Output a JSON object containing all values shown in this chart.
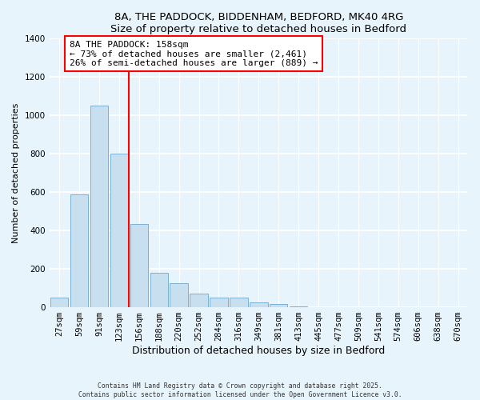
{
  "title_line1": "8A, THE PADDOCK, BIDDENHAM, BEDFORD, MK40 4RG",
  "title_line2": "Size of property relative to detached houses in Bedford",
  "xlabel": "Distribution of detached houses by size in Bedford",
  "ylabel": "Number of detached properties",
  "bar_labels": [
    "27sqm",
    "59sqm",
    "91sqm",
    "123sqm",
    "156sqm",
    "188sqm",
    "220sqm",
    "252sqm",
    "284sqm",
    "316sqm",
    "349sqm",
    "381sqm",
    "413sqm",
    "445sqm",
    "477sqm",
    "509sqm",
    "541sqm",
    "574sqm",
    "606sqm",
    "638sqm",
    "670sqm"
  ],
  "bar_values": [
    50,
    590,
    1050,
    800,
    435,
    180,
    125,
    70,
    50,
    50,
    25,
    15,
    5,
    2,
    1,
    0,
    0,
    0,
    0,
    0,
    2
  ],
  "bar_color": "#c8dff0",
  "bar_edge_color": "#7ab0d8",
  "vline_x_index": 4,
  "vline_color": "red",
  "annotation_title": "8A THE PADDOCK: 158sqm",
  "annotation_line2": "← 73% of detached houses are smaller (2,461)",
  "annotation_line3": "26% of semi-detached houses are larger (889) →",
  "annotation_box_color": "white",
  "annotation_box_edge": "red",
  "ylim": [
    0,
    1400
  ],
  "yticks": [
    0,
    200,
    400,
    600,
    800,
    1000,
    1200,
    1400
  ],
  "footer_line1": "Contains HM Land Registry data © Crown copyright and database right 2025.",
  "footer_line2": "Contains public sector information licensed under the Open Government Licence v3.0.",
  "bg_color": "#e8f4fc",
  "grid_color": "#ffffff",
  "title_fontsize": 9.5,
  "xlabel_fontsize": 9,
  "ylabel_fontsize": 8,
  "tick_fontsize": 7.5,
  "annotation_fontsize": 8
}
